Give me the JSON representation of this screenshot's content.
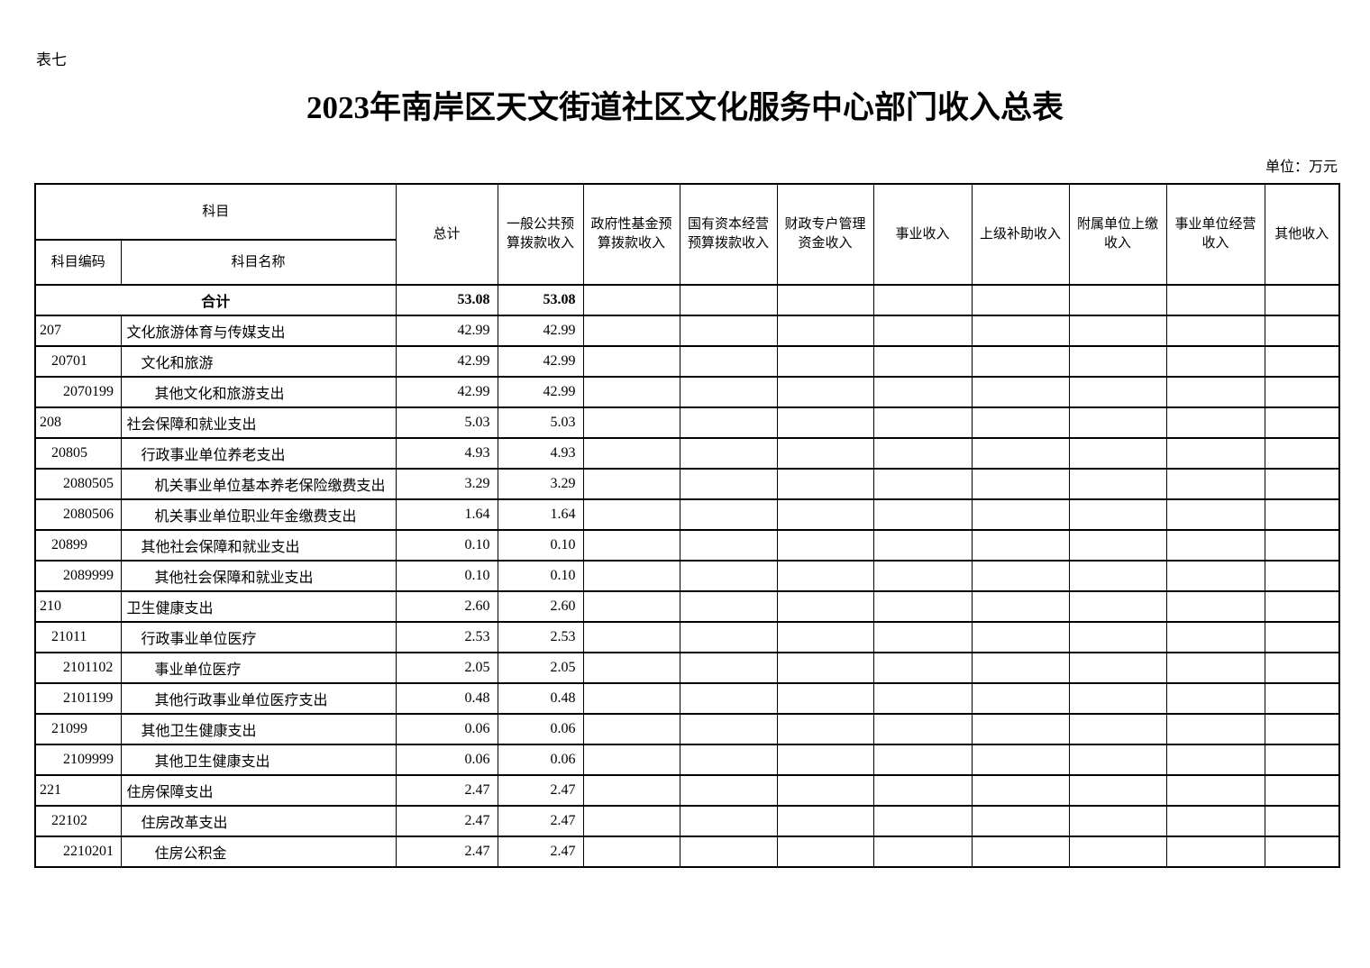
{
  "page": {
    "table_label": "表七",
    "title": "2023年南岸区天文街道社区文化服务中心部门收入总表",
    "unit_label": "单位：万元"
  },
  "table": {
    "subject_header": "科目",
    "code_header": "科目编码",
    "name_header": "科目名称",
    "value_columns": [
      "总计",
      "一般公共预\n算拨款收入",
      "政府性基金预\n算拨款收入",
      "国有资本经营\n预算拨款收入",
      "财政专户管理\n资金收入",
      "事业收入",
      "上级补助收入",
      "附属单位上缴\n收入",
      "事业单位经营\n收入",
      "其他收入"
    ],
    "rows": [
      {
        "merged": true,
        "bold": true,
        "code": "",
        "name": "合计",
        "level": 0,
        "values": [
          "53.08",
          "53.08",
          "",
          "",
          "",
          "",
          "",
          "",
          "",
          ""
        ]
      },
      {
        "merged": false,
        "bold": false,
        "code": "207",
        "name": "文化旅游体育与传媒支出",
        "level": 0,
        "values": [
          "42.99",
          "42.99",
          "",
          "",
          "",
          "",
          "",
          "",
          "",
          ""
        ]
      },
      {
        "merged": false,
        "bold": false,
        "code": "20701",
        "name": "文化和旅游",
        "level": 1,
        "values": [
          "42.99",
          "42.99",
          "",
          "",
          "",
          "",
          "",
          "",
          "",
          ""
        ]
      },
      {
        "merged": false,
        "bold": false,
        "code": "2070199",
        "name": "其他文化和旅游支出",
        "level": 2,
        "values": [
          "42.99",
          "42.99",
          "",
          "",
          "",
          "",
          "",
          "",
          "",
          ""
        ]
      },
      {
        "merged": false,
        "bold": false,
        "code": "208",
        "name": "社会保障和就业支出",
        "level": 0,
        "values": [
          "5.03",
          "5.03",
          "",
          "",
          "",
          "",
          "",
          "",
          "",
          ""
        ]
      },
      {
        "merged": false,
        "bold": false,
        "code": "20805",
        "name": "行政事业单位养老支出",
        "level": 1,
        "values": [
          "4.93",
          "4.93",
          "",
          "",
          "",
          "",
          "",
          "",
          "",
          ""
        ]
      },
      {
        "merged": false,
        "bold": false,
        "code": "2080505",
        "name": "机关事业单位基本养老保险缴费支出",
        "level": 2,
        "values": [
          "3.29",
          "3.29",
          "",
          "",
          "",
          "",
          "",
          "",
          "",
          ""
        ]
      },
      {
        "merged": false,
        "bold": false,
        "code": "2080506",
        "name": "机关事业单位职业年金缴费支出",
        "level": 2,
        "values": [
          "1.64",
          "1.64",
          "",
          "",
          "",
          "",
          "",
          "",
          "",
          ""
        ]
      },
      {
        "merged": false,
        "bold": false,
        "code": "20899",
        "name": "其他社会保障和就业支出",
        "level": 1,
        "values": [
          "0.10",
          "0.10",
          "",
          "",
          "",
          "",
          "",
          "",
          "",
          ""
        ]
      },
      {
        "merged": false,
        "bold": false,
        "code": "2089999",
        "name": "其他社会保障和就业支出",
        "level": 2,
        "values": [
          "0.10",
          "0.10",
          "",
          "",
          "",
          "",
          "",
          "",
          "",
          ""
        ]
      },
      {
        "merged": false,
        "bold": false,
        "code": "210",
        "name": "卫生健康支出",
        "level": 0,
        "values": [
          "2.60",
          "2.60",
          "",
          "",
          "",
          "",
          "",
          "",
          "",
          ""
        ]
      },
      {
        "merged": false,
        "bold": false,
        "code": "21011",
        "name": "行政事业单位医疗",
        "level": 1,
        "values": [
          "2.53",
          "2.53",
          "",
          "",
          "",
          "",
          "",
          "",
          "",
          ""
        ]
      },
      {
        "merged": false,
        "bold": false,
        "code": "2101102",
        "name": "事业单位医疗",
        "level": 2,
        "values": [
          "2.05",
          "2.05",
          "",
          "",
          "",
          "",
          "",
          "",
          "",
          ""
        ]
      },
      {
        "merged": false,
        "bold": false,
        "code": "2101199",
        "name": "其他行政事业单位医疗支出",
        "level": 2,
        "values": [
          "0.48",
          "0.48",
          "",
          "",
          "",
          "",
          "",
          "",
          "",
          ""
        ]
      },
      {
        "merged": false,
        "bold": false,
        "code": "21099",
        "name": "其他卫生健康支出",
        "level": 1,
        "values": [
          "0.06",
          "0.06",
          "",
          "",
          "",
          "",
          "",
          "",
          "",
          ""
        ]
      },
      {
        "merged": false,
        "bold": false,
        "code": "2109999",
        "name": "其他卫生健康支出",
        "level": 2,
        "values": [
          "0.06",
          "0.06",
          "",
          "",
          "",
          "",
          "",
          "",
          "",
          ""
        ]
      },
      {
        "merged": false,
        "bold": false,
        "code": "221",
        "name": "住房保障支出",
        "level": 0,
        "values": [
          "2.47",
          "2.47",
          "",
          "",
          "",
          "",
          "",
          "",
          "",
          ""
        ]
      },
      {
        "merged": false,
        "bold": false,
        "code": "22102",
        "name": "住房改革支出",
        "level": 1,
        "values": [
          "2.47",
          "2.47",
          "",
          "",
          "",
          "",
          "",
          "",
          "",
          ""
        ]
      },
      {
        "merged": false,
        "bold": false,
        "code": "2210201",
        "name": "住房公积金",
        "level": 2,
        "values": [
          "2.47",
          "2.47",
          "",
          "",
          "",
          "",
          "",
          "",
          "",
          ""
        ]
      }
    ]
  }
}
